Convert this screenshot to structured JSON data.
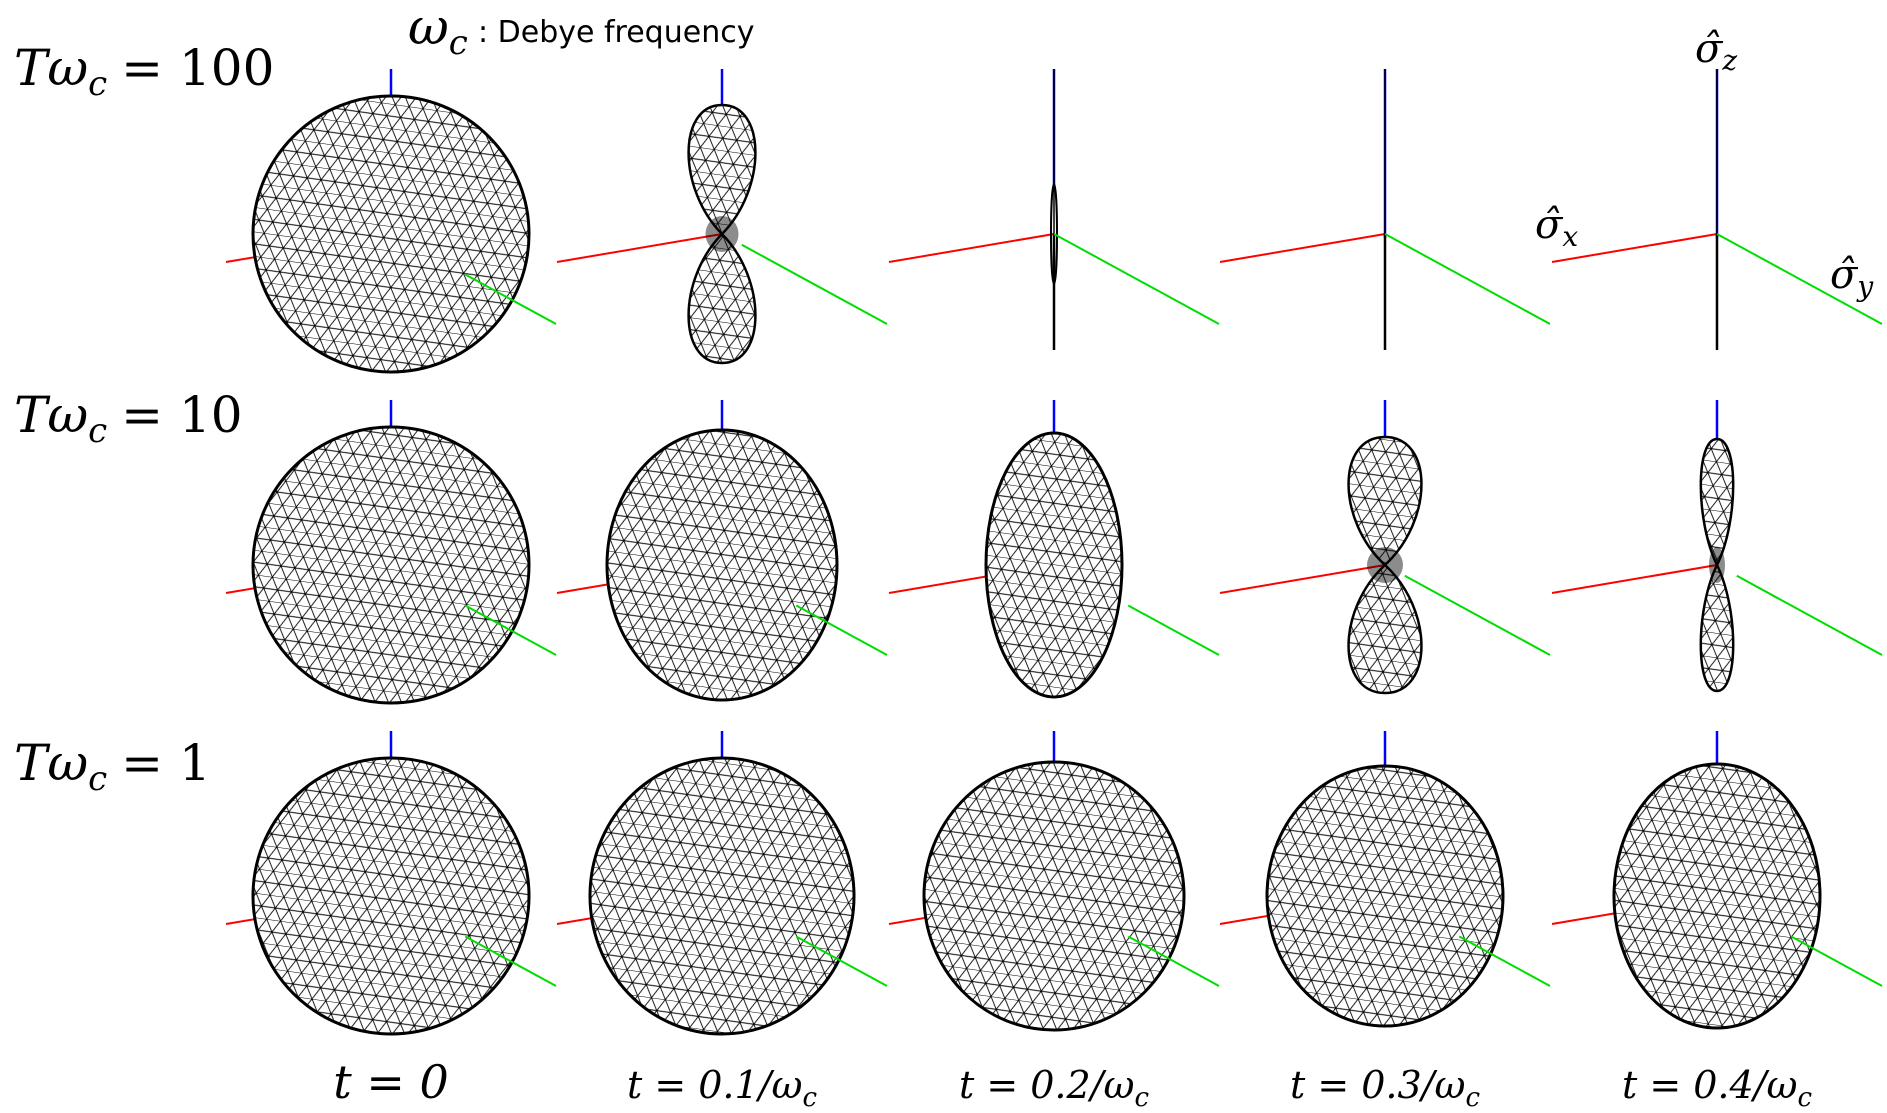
{
  "header": {
    "symbol": "ω",
    "symbol_sub": "c",
    "caption": ": Debye frequency"
  },
  "rows": [
    {
      "main": "Tω",
      "sub": "c",
      "rest": "= 100"
    },
    {
      "main": "Tω",
      "sub": "c",
      "rest": "= 10"
    },
    {
      "main": "Tω",
      "sub": "c",
      "rest": "= 1"
    }
  ],
  "columns": [
    {
      "main": "t = 0",
      "sub": null
    },
    {
      "main": "t = 0.1/ω",
      "sub": "c"
    },
    {
      "main": "t = 0.2/ω",
      "sub": "c"
    },
    {
      "main": "t = 0.3/ω",
      "sub": "c"
    },
    {
      "main": "t = 0.4/ω",
      "sub": "c"
    }
  ],
  "axes": {
    "z": {
      "main": "σ̂",
      "sub": "z"
    },
    "x": {
      "main": "σ̂",
      "sub": "x"
    },
    "y": {
      "main": "σ̂",
      "sub": "y"
    }
  }
}
